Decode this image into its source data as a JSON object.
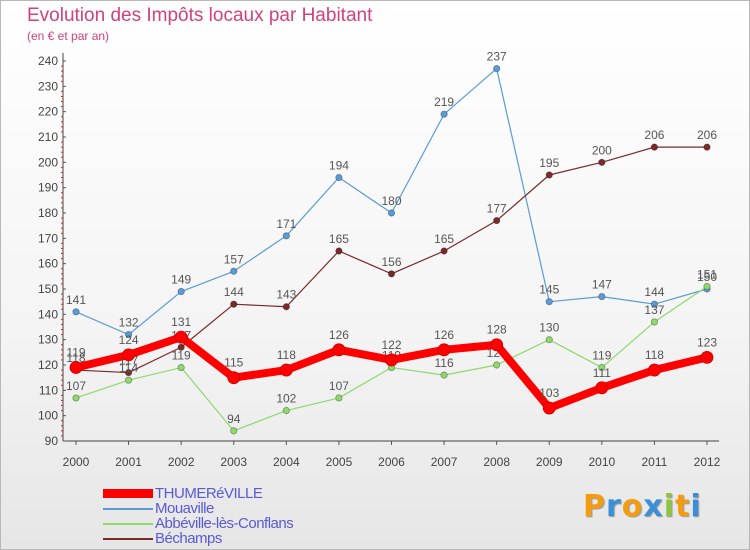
{
  "chart_data": {
    "type": "line",
    "title": "Evolution des Impôts locaux par Habitant",
    "subtitle": "(en € et par an)",
    "xlabel": "",
    "ylabel": "",
    "ylim": [
      90,
      240
    ],
    "yticks": [
      90,
      100,
      110,
      120,
      130,
      140,
      150,
      160,
      170,
      180,
      190,
      200,
      210,
      220,
      230,
      240
    ],
    "categories": [
      "2000",
      "2001",
      "2002",
      "2003",
      "2004",
      "2005",
      "2006",
      "2007",
      "2008",
      "2009",
      "2010",
      "2011",
      "2012"
    ],
    "grid": false,
    "series": [
      {
        "name": "Mouaville",
        "color": "#5b9bd5",
        "width": 1.2,
        "values": [
          141,
          132,
          149,
          157,
          171,
          194,
          180,
          219,
          237,
          145,
          147,
          144,
          150
        ],
        "labels": [
          "141",
          "132",
          "149",
          "157",
          "171",
          "194",
          "180",
          "219",
          "237",
          "145",
          "147",
          "144",
          "150"
        ]
      },
      {
        "name": "Béchamps",
        "color": "#7b2a2a",
        "width": 1.2,
        "values": [
          118,
          117,
          127,
          144,
          143,
          165,
          156,
          165,
          177,
          195,
          200,
          206,
          206
        ],
        "labels": [
          "118",
          "117",
          "127",
          "144",
          "143",
          "165",
          "156",
          "165",
          "177",
          "195",
          "200",
          "206",
          "206"
        ]
      },
      {
        "name": "Abbéville-lès-Conflans",
        "color": "#8fd86c",
        "width": 1.2,
        "values": [
          107,
          114,
          119,
          94,
          102,
          107,
          119,
          116,
          120,
          130,
          119,
          137,
          151
        ],
        "labels": [
          "107",
          "114",
          "119",
          "94",
          "102",
          "107",
          "119",
          "116",
          "120",
          "130",
          "119",
          "137",
          "151"
        ]
      },
      {
        "name": "THUMERéVILLE",
        "color": "#ff0000",
        "width": 8,
        "values": [
          119,
          124,
          131,
          115,
          118,
          126,
          122,
          126,
          128,
          103,
          111,
          118,
          123
        ],
        "labels": [
          "119",
          "124",
          "131",
          "115",
          "118",
          "126",
          "122",
          "126",
          "128",
          "103",
          "111",
          "118",
          "123"
        ]
      }
    ]
  },
  "legend": {
    "items": [
      {
        "label": "THUMERéVILLE",
        "color": "#ff0000",
        "thick": true
      },
      {
        "label": "Mouaville",
        "color": "#5b9bd5",
        "thick": false
      },
      {
        "label": "Abbéville-lès-Conflans",
        "color": "#8fd86c",
        "thick": false
      },
      {
        "label": "Béchamps",
        "color": "#7b2a2a",
        "thick": false
      }
    ]
  },
  "logo": {
    "letters": [
      "P",
      "r",
      "o",
      "x",
      "i",
      "t",
      "i"
    ],
    "colors": [
      "#f39c12",
      "#3b8fd8",
      "#f39c12",
      "#3b8fd8",
      "#8cc63f",
      "#f39c12",
      "#3b8fd8"
    ]
  }
}
